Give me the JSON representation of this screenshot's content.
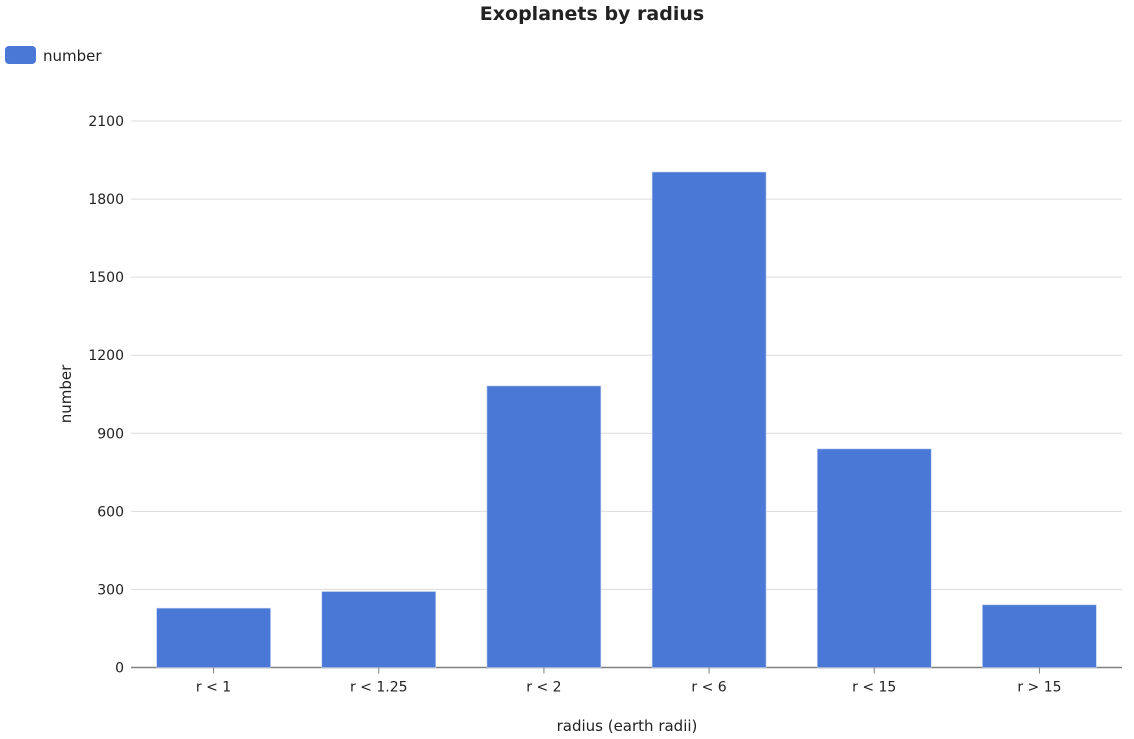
{
  "chart_data": {
    "type": "bar",
    "title": "Exoplanets by radius",
    "xlabel": "radius (earth radii)",
    "ylabel": "number",
    "categories": [
      "r < 1",
      "r < 1.25",
      "r < 2",
      "r < 6",
      "r < 15",
      "r > 15"
    ],
    "series": [
      {
        "name": "number",
        "values": [
          228,
          292,
          1082,
          1904,
          840,
          241
        ],
        "color": "#4a78d6"
      }
    ],
    "ylim": [
      0,
      2100
    ],
    "yticks": [
      0,
      300,
      600,
      900,
      1200,
      1500,
      1800,
      2100
    ],
    "grid": true,
    "legend": "top-left"
  }
}
